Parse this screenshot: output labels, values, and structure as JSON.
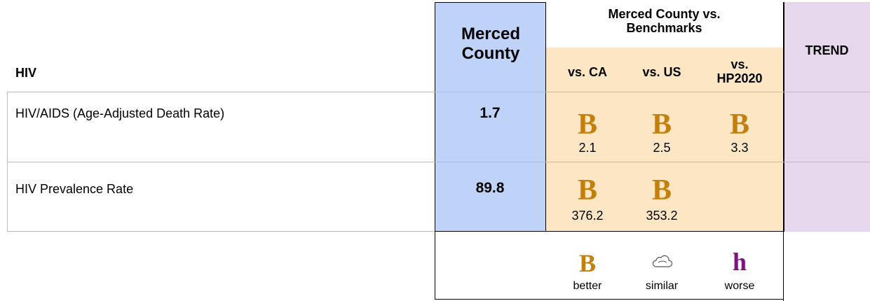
{
  "header": {
    "category": "HIV",
    "county": "Merced County",
    "benchmarks": "Merced County vs. Benchmarks",
    "vs_ca": "vs. CA",
    "vs_us": "vs. US",
    "vs_hp2020": "vs. HP2020",
    "trend": "TREND"
  },
  "rows": [
    {
      "label": "HIV/AIDS (Age-Adjusted Death Rate)",
      "value": 1.7,
      "comparisons": [
        {
          "icon": "B",
          "value": 2.1
        },
        {
          "icon": "B",
          "value": 2.5
        },
        {
          "icon": "B",
          "value": 3.3
        }
      ]
    },
    {
      "label": "HIV Prevalence Rate",
      "value": 89.8,
      "comparisons": [
        {
          "icon": "B",
          "value": 376.2
        },
        {
          "icon": "B",
          "value": 353.2
        }
      ]
    }
  ],
  "legend": [
    {
      "icon": "B",
      "label": "better"
    },
    {
      "label": "similar"
    },
    {
      "icon": "h",
      "label": "worse"
    }
  ]
}
